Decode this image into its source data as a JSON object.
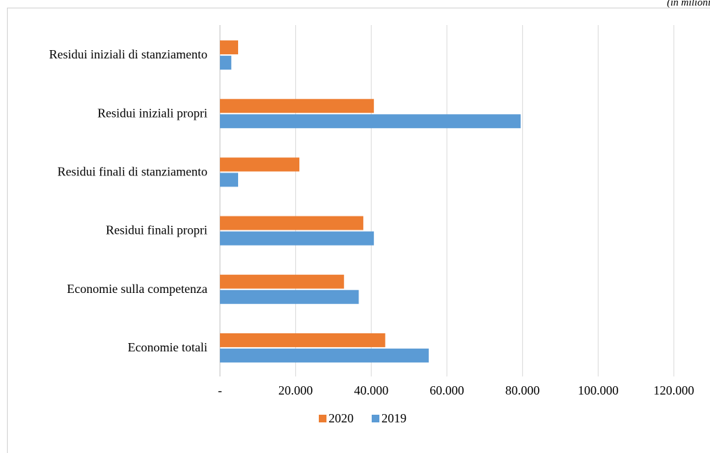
{
  "unit_note": "(in milioni)",
  "chart_data": {
    "type": "bar",
    "orientation": "horizontal",
    "title": "",
    "xlabel": "",
    "ylabel": "",
    "categories": [
      "Residui iniziali di stanziamento",
      "Residui iniziali propri",
      "Residui finali di stanziamento",
      "Residui finali propri",
      "Economie sulla competenza",
      "Economie totali"
    ],
    "series": [
      {
        "name": "2020",
        "color": "#ED7D31",
        "values": [
          4800,
          40700,
          21000,
          37900,
          32800,
          43700
        ]
      },
      {
        "name": "2019",
        "color": "#5B9BD5",
        "values": [
          3000,
          79500,
          4800,
          40700,
          36700,
          55200
        ]
      }
    ],
    "xlim": [
      0,
      120000
    ],
    "ticks": [
      0,
      20000,
      40000,
      60000,
      80000,
      100000,
      120000
    ],
    "tick_labels": [
      "-",
      "20.000",
      "40.000",
      "60.000",
      "80.000",
      "100.000",
      "120.000"
    ],
    "grid": true,
    "legend_position": "bottom"
  }
}
